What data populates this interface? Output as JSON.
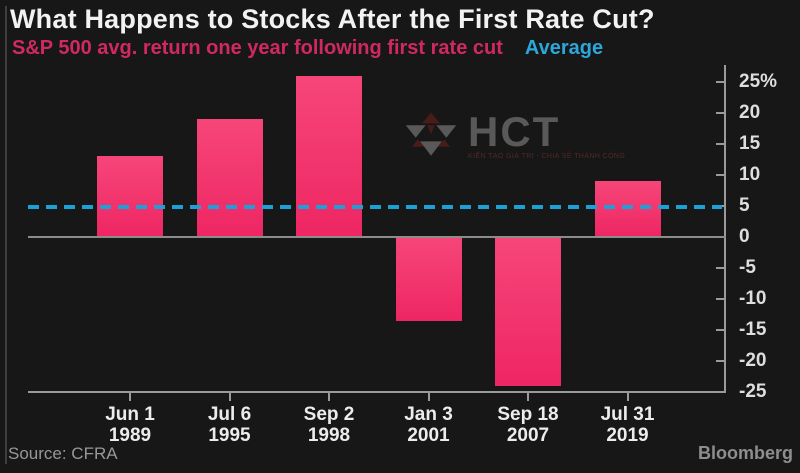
{
  "header": {
    "title": "What Happens to Stocks After the First Rate Cut?",
    "subtitle": "S&P 500 avg. return one year following first rate cut",
    "legend_average": "Average"
  },
  "chart_data": {
    "type": "bar",
    "title": "What Happens to Stocks After the First Rate Cut?",
    "subtitle": "S&P 500 avg. return one year following first rate cut",
    "categories": [
      [
        "Jun 1",
        "1989"
      ],
      [
        "Jul 6",
        "1995"
      ],
      [
        "Sep 2",
        "1998"
      ],
      [
        "Jan 3",
        "2001"
      ],
      [
        "Sep 18",
        "2007"
      ],
      [
        "Jul 31",
        "2019"
      ]
    ],
    "values": [
      13,
      19,
      26,
      -13.5,
      -24,
      9
    ],
    "average_line": 4.8,
    "xlabel": "",
    "ylabel": "",
    "ylim": [
      -25,
      27.5
    ],
    "yticks": [
      {
        "label": "25%",
        "value": 25
      },
      {
        "label": "20",
        "value": 20
      },
      {
        "label": "15",
        "value": 15
      },
      {
        "label": "10",
        "value": 10
      },
      {
        "label": "5",
        "value": 5
      },
      {
        "label": "0",
        "value": 0
      },
      {
        "label": "-5",
        "value": -5
      },
      {
        "label": "-10",
        "value": -10
      },
      {
        "label": "-15",
        "value": -15
      },
      {
        "label": "-20",
        "value": -20
      },
      {
        "label": "-25",
        "value": -25
      }
    ],
    "grid": false,
    "axis_side": "right",
    "legend": [
      {
        "label": "Average",
        "style": "dashed",
        "color": "#2da6da"
      }
    ],
    "colors": {
      "bar": "#ee2a64",
      "average_line": "#1ba0d8",
      "subtitle": "#d02960",
      "background": "#171717"
    }
  },
  "watermark": {
    "text": "HCT",
    "tagline": "KIẾN TẠO GIÁ TRỊ - CHIA SẺ THÀNH CÔNG"
  },
  "footer": {
    "source": "Source: CFRA",
    "brand": "Bloomberg"
  }
}
